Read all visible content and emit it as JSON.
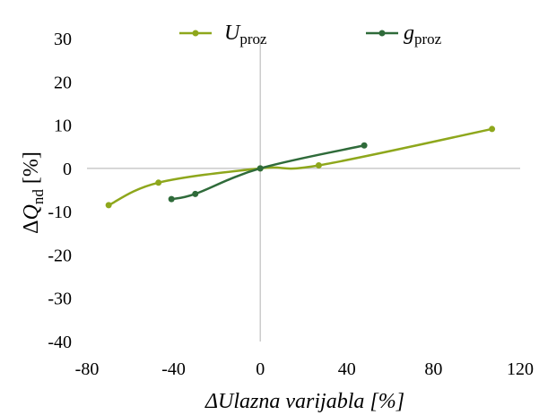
{
  "chart_data": {
    "type": "line",
    "xlabel": "ΔUlazna varijabla [%]",
    "ylabel": {
      "prefix": "Δ",
      "symbol": "Q",
      "subscript": "nd",
      "unit": " [%]"
    },
    "xlim": [
      -80,
      120
    ],
    "ylim": [
      -40,
      30
    ],
    "x_ticks": [
      -80,
      -40,
      0,
      40,
      80,
      120
    ],
    "y_ticks": [
      -40,
      -30,
      -20,
      -10,
      0,
      10,
      20,
      30
    ],
    "gridlines": false,
    "legend_position": "top",
    "series": [
      {
        "symbol": "U",
        "subscript": "proz",
        "color": "#8ea71c",
        "points": [
          [
            -70,
            -8.5
          ],
          [
            -47,
            -3.3
          ],
          [
            0,
            0
          ],
          [
            27,
            0.7
          ],
          [
            107,
            9.1
          ]
        ]
      },
      {
        "symbol": "g",
        "subscript": "proz",
        "color": "#2f6b3a",
        "points": [
          [
            -41,
            -7.1
          ],
          [
            -30,
            -5.9
          ],
          [
            0,
            0
          ],
          [
            48,
            5.3
          ]
        ]
      }
    ]
  }
}
